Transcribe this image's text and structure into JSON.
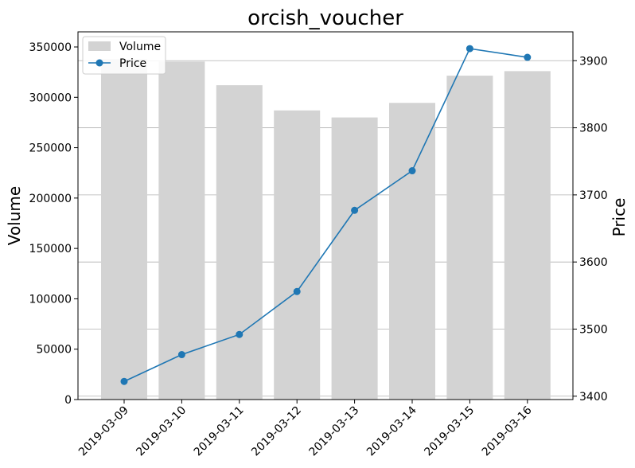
{
  "chart_data": {
    "type": "bar+line",
    "title": "orcish_voucher",
    "categories": [
      "2019-03-09",
      "2019-03-10",
      "2019-03-11",
      "2019-03-12",
      "2019-03-13",
      "2019-03-14",
      "2019-03-15",
      "2019-03-16"
    ],
    "series": [
      {
        "name": "Volume",
        "type": "bar",
        "axis": "left",
        "color": "#d3d3d3",
        "values": [
          338000,
          335500,
          312000,
          287000,
          280000,
          294500,
          321500,
          326000
        ]
      },
      {
        "name": "Price",
        "type": "line",
        "axis": "right",
        "color": "#1f77b4",
        "values": [
          3422,
          3462,
          3492,
          3556,
          3677,
          3736,
          3918,
          3905
        ]
      }
    ],
    "y_left": {
      "label": "Volume",
      "lim": [
        0,
        365000
      ],
      "ticks": [
        0,
        50000,
        100000,
        150000,
        200000,
        250000,
        300000,
        350000
      ]
    },
    "y_right": {
      "label": "Price",
      "lim": [
        3395,
        3943
      ],
      "ticks": [
        3400,
        3500,
        3600,
        3700,
        3800,
        3900
      ]
    },
    "grid": true,
    "legend": "upper-left"
  }
}
